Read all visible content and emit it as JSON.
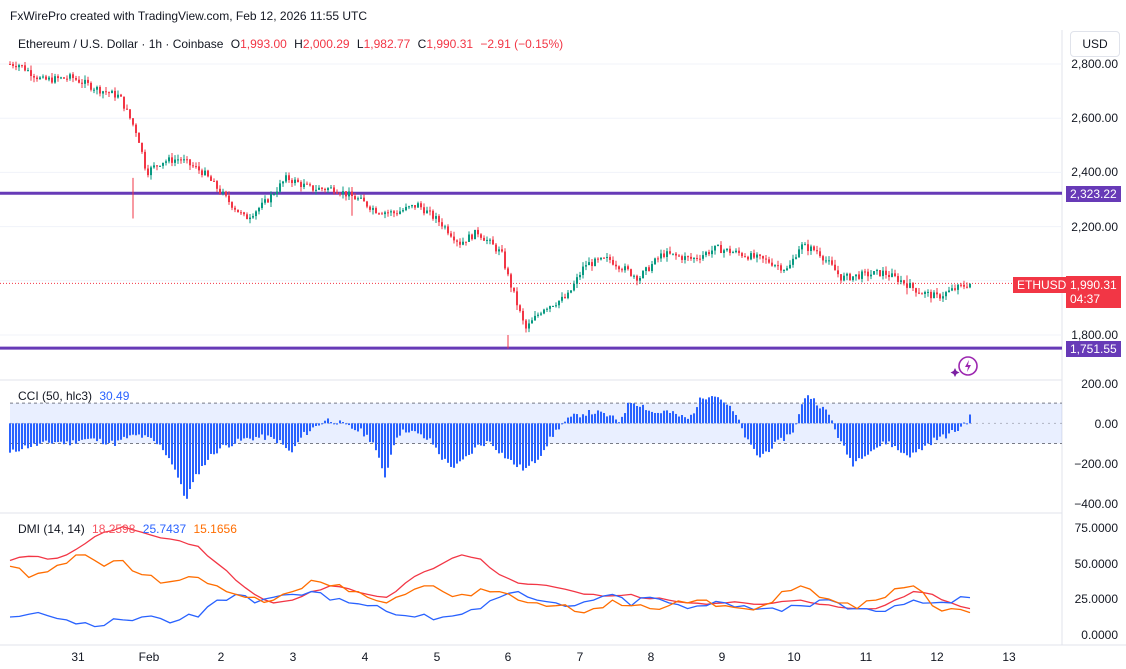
{
  "header": {
    "credit": "FxWirePro created with TradingView.com, Feb 12, 2026 11:55 UTC"
  },
  "legend": {
    "symbol": "Ethereum / U.S. Dollar · 1h · Coinbase",
    "o_label": "O",
    "o": "1,993.00",
    "h_label": "H",
    "h": "2,000.29",
    "l_label": "L",
    "l": "1,982.77",
    "c_label": "C",
    "c": "1,990.31",
    "change": "−2.91 (−0.15%)"
  },
  "currency_button": "USD",
  "price_axis": [
    "2,800.00",
    "2,600.00",
    "2,400.00",
    "2,200.00",
    "1,800.00"
  ],
  "price_tags": {
    "resistance": "2,323.22",
    "support": "1,751.55",
    "symbol": "ETHUSD",
    "last": "1,990.31",
    "countdown": "04:37"
  },
  "cci": {
    "label": "CCI (50, hlc3)",
    "value": "30.49",
    "axis": [
      "200.00",
      "0.00",
      "−200.00",
      "−400.00"
    ]
  },
  "dmi": {
    "label": "DMI (14, 14)",
    "v1": "18.2598",
    "v2": "25.7437",
    "v3": "15.1656",
    "axis": [
      "75.0000",
      "50.0000",
      "25.0000",
      "0.0000"
    ]
  },
  "x_axis": [
    "31",
    "Feb",
    "2",
    "3",
    "4",
    "5",
    "6",
    "7",
    "8",
    "9",
    "10",
    "11",
    "12",
    "13"
  ],
  "colors": {
    "up": "#089981",
    "down": "#f23645",
    "level": "#673ab7",
    "cci": "#2962ff",
    "plus_di": "#2962ff",
    "minus_di": "#ff6d00",
    "adx": "#f23645"
  },
  "chart_data": [
    {
      "type": "candlestick",
      "title": "Ethereum / U.S. Dollar · 1h · Coinbase",
      "x": [
        "31",
        "Feb",
        "2",
        "3",
        "4",
        "5",
        "6",
        "7",
        "8",
        "9",
        "10",
        "11",
        "12",
        "13"
      ],
      "ylim": [
        1700,
        2830
      ],
      "levels": [
        2323.22,
        1751.55
      ],
      "close_path": [
        {
          "x": "Jan 30 04:00",
          "y": 2800
        },
        {
          "x": "Jan 30 12:00",
          "y": 2740
        },
        {
          "x": "Jan 30 22:00",
          "y": 2750
        },
        {
          "x": "Jan 31 06:00",
          "y": 2710
        },
        {
          "x": "Jan 31 14:00",
          "y": 2680
        },
        {
          "x": "Jan 31 20:00",
          "y": 2540
        },
        {
          "x": "Jan 31 23:00",
          "y": 2400
        },
        {
          "x": "Feb 1 04:00",
          "y": 2440
        },
        {
          "x": "Feb 1 10:00",
          "y": 2450
        },
        {
          "x": "Feb 1 18:00",
          "y": 2400
        },
        {
          "x": "Feb 2 02:00",
          "y": 2300
        },
        {
          "x": "Feb 2 08:00",
          "y": 2230
        },
        {
          "x": "Feb 2 14:00",
          "y": 2280
        },
        {
          "x": "Feb 2 22:00",
          "y": 2380
        },
        {
          "x": "Feb 3 06:00",
          "y": 2340
        },
        {
          "x": "Feb 3 14:00",
          "y": 2340
        },
        {
          "x": "Feb 3 22:00",
          "y": 2300
        },
        {
          "x": "Feb 4 04:00",
          "y": 2260
        },
        {
          "x": "Feb 4 10:00",
          "y": 2250
        },
        {
          "x": "Feb 4 18:00",
          "y": 2280
        },
        {
          "x": "Feb 5 02:00",
          "y": 2210
        },
        {
          "x": "Feb 5 08:00",
          "y": 2140
        },
        {
          "x": "Feb 5 14:00",
          "y": 2180
        },
        {
          "x": "Feb 5 22:00",
          "y": 2100
        },
        {
          "x": "Feb 6 00:00",
          "y": 2020
        },
        {
          "x": "Feb 6 06:00",
          "y": 1820
        },
        {
          "x": "Feb 6 12:00",
          "y": 1900
        },
        {
          "x": "Feb 6 20:00",
          "y": 1940
        },
        {
          "x": "Feb 7 02:00",
          "y": 2060
        },
        {
          "x": "Feb 7 10:00",
          "y": 2080
        },
        {
          "x": "Feb 7 20:00",
          "y": 2010
        },
        {
          "x": "Feb 8 04:00",
          "y": 2100
        },
        {
          "x": "Feb 8 14:00",
          "y": 2080
        },
        {
          "x": "Feb 8 22:00",
          "y": 2120
        },
        {
          "x": "Feb 9 06:00",
          "y": 2100
        },
        {
          "x": "Feb 9 16:00",
          "y": 2070
        },
        {
          "x": "Feb 9 22:00",
          "y": 2040
        },
        {
          "x": "Feb 10 02:00",
          "y": 2130
        },
        {
          "x": "Feb 10 08:00",
          "y": 2110
        },
        {
          "x": "Feb 10 16:00",
          "y": 2010
        },
        {
          "x": "Feb 10 22:00",
          "y": 2020
        },
        {
          "x": "Feb 11 06:00",
          "y": 2030
        },
        {
          "x": "Feb 11 12:00",
          "y": 2000
        },
        {
          "x": "Feb 11 18:00",
          "y": 1960
        },
        {
          "x": "Feb 12 00:00",
          "y": 1940
        },
        {
          "x": "Feb 12 06:00",
          "y": 1970
        },
        {
          "x": "Feb 12 11:00",
          "y": 1990
        }
      ]
    },
    {
      "type": "bar",
      "title": "CCI (50, hlc3)",
      "ylim": [
        -400,
        200
      ],
      "band": [
        100,
        -100
      ],
      "values": [
        -150,
        -120,
        -110,
        -100,
        -90,
        -100,
        -80,
        -80,
        -90,
        -100,
        -70,
        -60,
        -80,
        -120,
        -210,
        -380,
        -250,
        -170,
        -120,
        -100,
        -80,
        -70,
        -70,
        -90,
        -150,
        -60,
        -20,
        20,
        5,
        -20,
        -40,
        -90,
        -270,
        -60,
        -30,
        -60,
        -90,
        -180,
        -220,
        -170,
        -110,
        -90,
        -150,
        -200,
        -230,
        -180,
        -90,
        -10,
        30,
        50,
        55,
        40,
        10,
        110,
        90,
        50,
        60,
        40,
        20,
        120,
        150,
        110,
        40,
        -90,
        -170,
        -120,
        -80,
        -30,
        150,
        100,
        40,
        -100,
        -200,
        -150,
        -120,
        -90,
        -140,
        -160,
        -120,
        -80,
        -60,
        -30,
        30
      ],
      "last": 30.49
    },
    {
      "type": "line",
      "title": "DMI (14, 14)",
      "ylim": [
        0,
        80
      ],
      "series": [
        {
          "values": [
            52,
            55,
            53,
            56,
            64,
            72,
            76,
            72,
            68,
            66,
            62,
            50,
            38,
            28,
            22,
            24,
            30,
            34,
            32,
            28,
            26,
            36,
            44,
            50,
            56,
            53,
            42,
            36,
            35,
            33,
            30,
            28,
            27,
            28,
            25,
            24,
            22,
            21,
            22,
            22,
            21,
            23,
            24,
            21,
            19,
            18,
            18,
            24,
            30,
            28,
            22,
            18
          ]
        },
        {
          "values": [
            12,
            14,
            13,
            10,
            8,
            6,
            10,
            12,
            11,
            10,
            12,
            24,
            28,
            22,
            26,
            28,
            30,
            24,
            22,
            20,
            16,
            13,
            14,
            12,
            14,
            18,
            26,
            30,
            24,
            22,
            20,
            24,
            28,
            20,
            26,
            22,
            18,
            20,
            22,
            20,
            18,
            16,
            20,
            24,
            22,
            18,
            16,
            20,
            24,
            22,
            22,
            25.74
          ]
        },
        {
          "values": [
            48,
            40,
            44,
            50,
            56,
            48,
            52,
            42,
            36,
            38,
            40,
            34,
            28,
            26,
            24,
            30,
            38,
            34,
            30,
            26,
            22,
            28,
            34,
            30,
            28,
            32,
            30,
            24,
            22,
            20,
            16,
            18,
            24,
            20,
            18,
            20,
            22,
            24,
            20,
            18,
            20,
            30,
            34,
            26,
            22,
            18,
            24,
            32,
            34,
            20,
            18,
            15.17
          ]
        }
      ]
    }
  ]
}
